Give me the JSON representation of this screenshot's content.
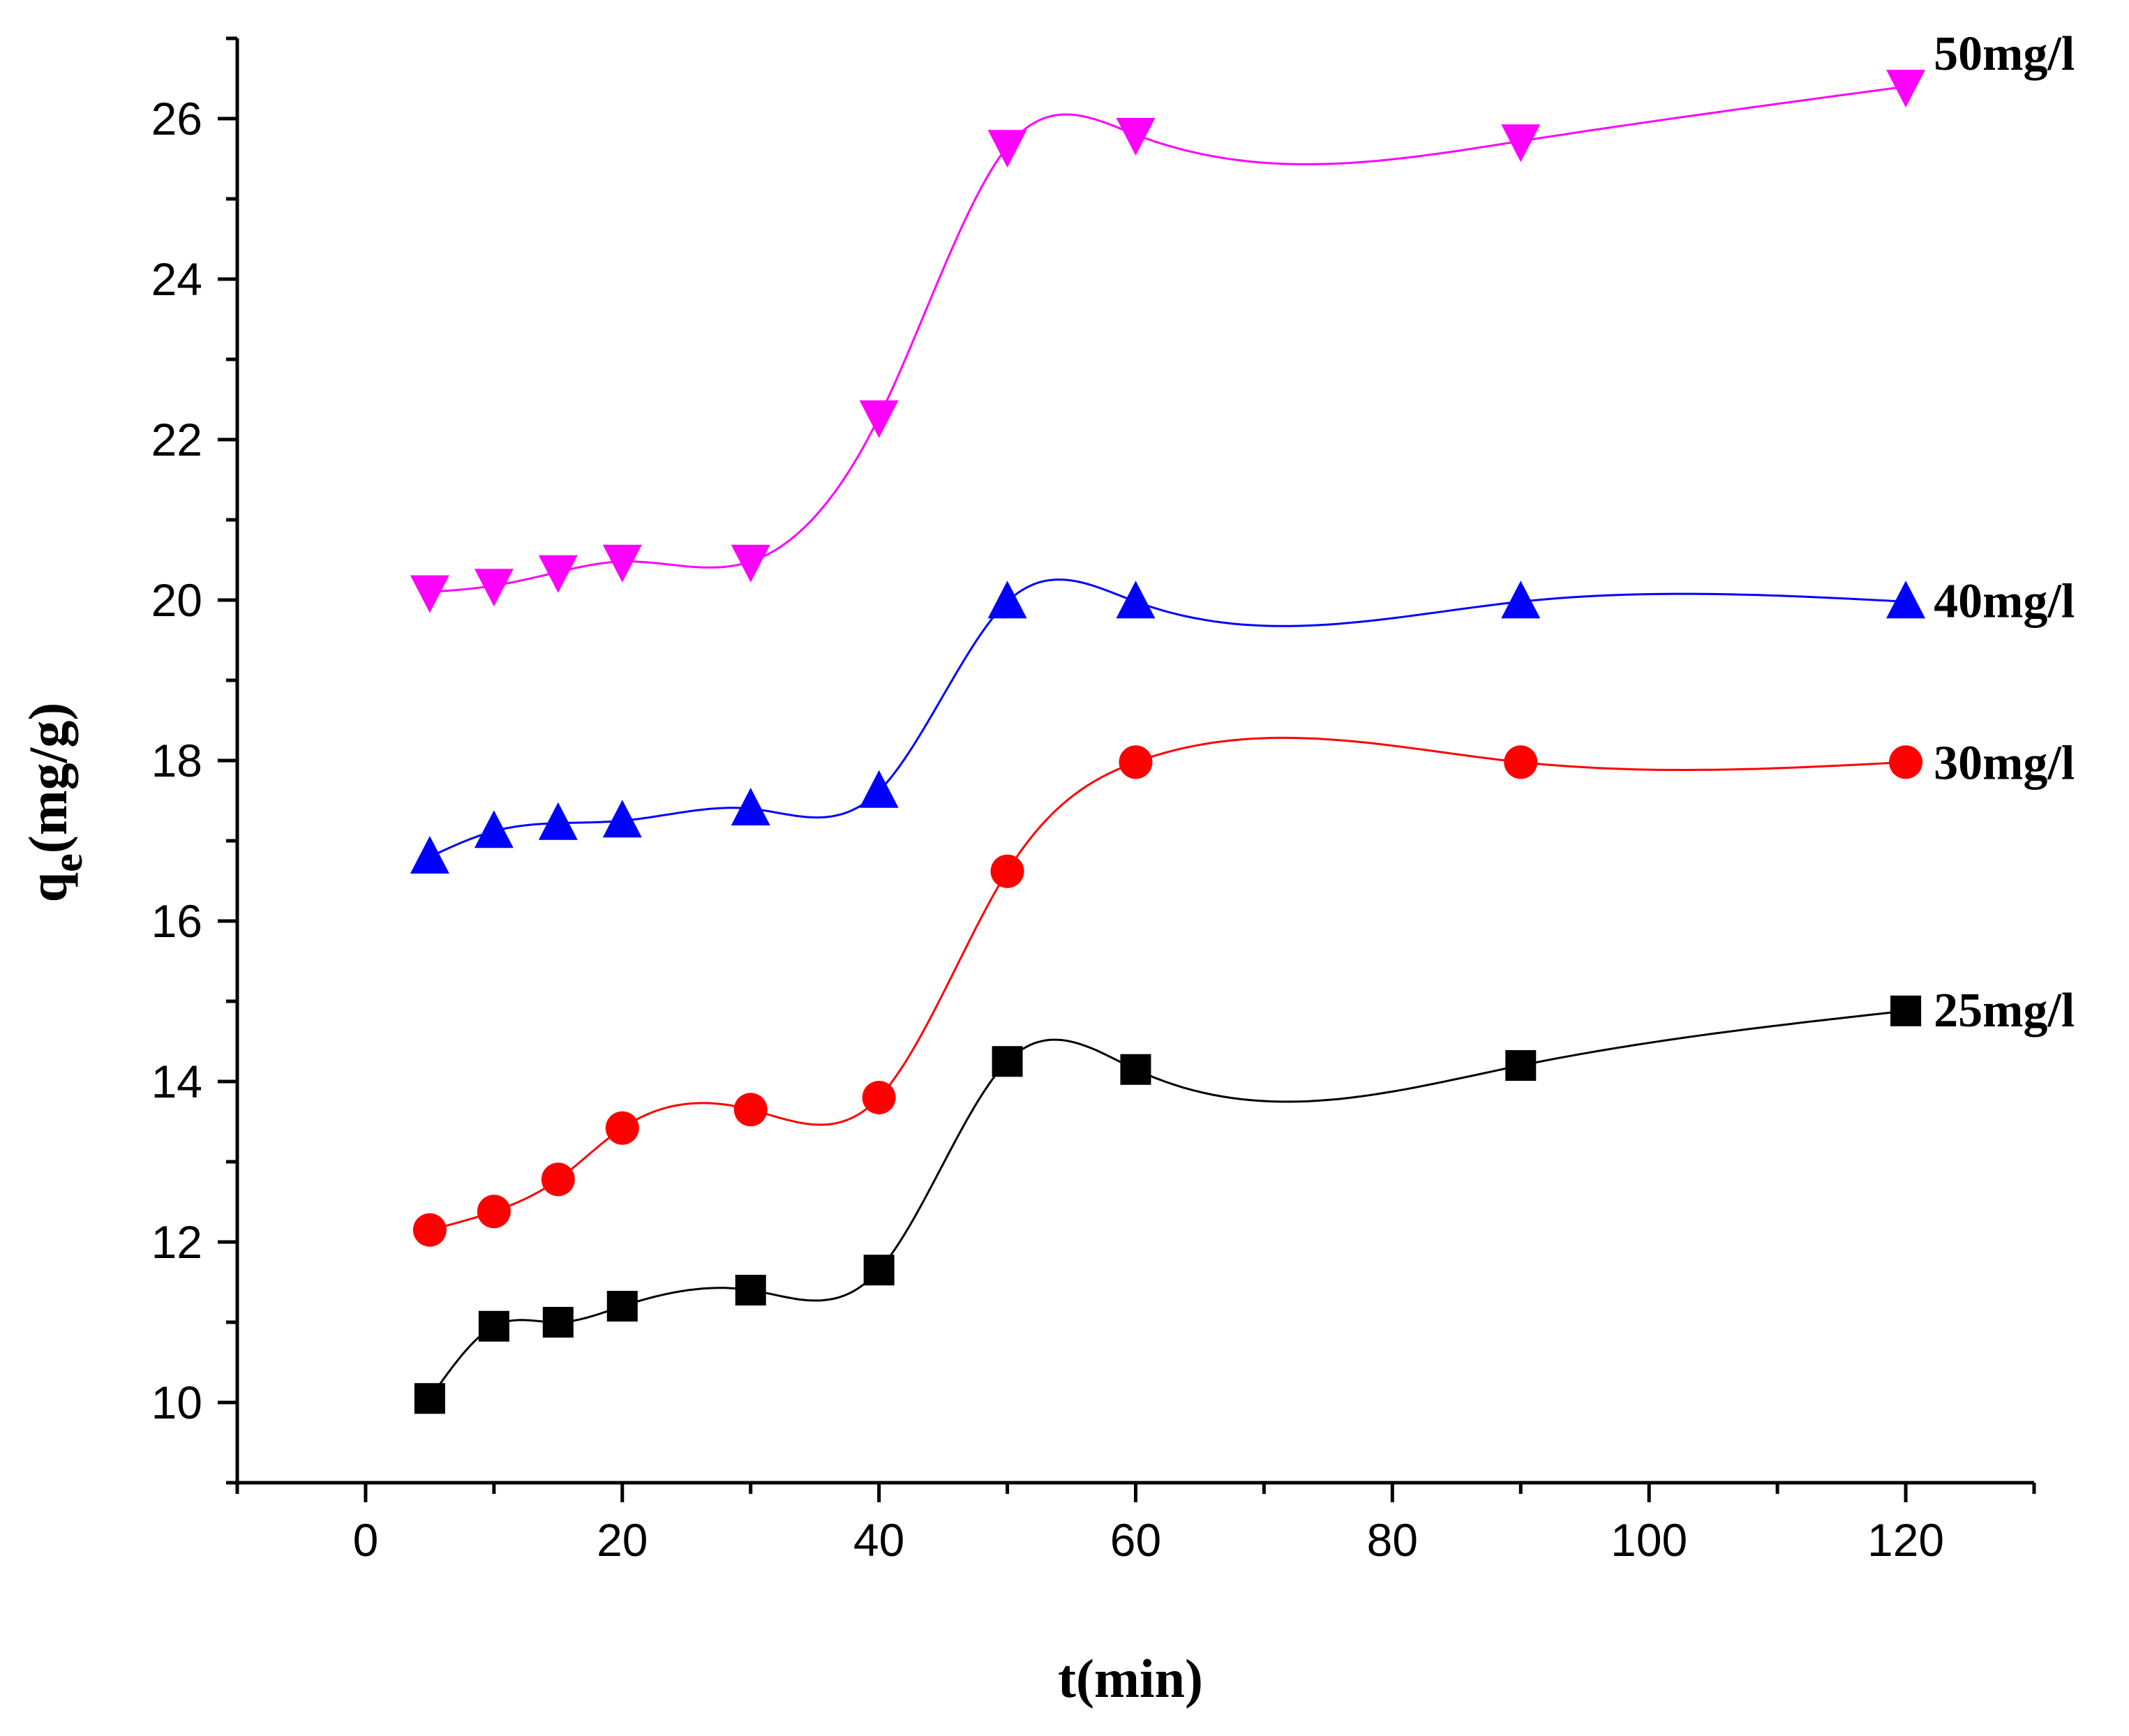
{
  "chart_data": {
    "type": "line",
    "title": "",
    "xlabel": "t(min)",
    "ylabel": {
      "main": "q",
      "sub": "e",
      "unit": "(mg/g)"
    },
    "xlim": [
      -10,
      130
    ],
    "ylim": [
      9.0,
      27.0
    ],
    "xticks": [
      0,
      20,
      40,
      60,
      80,
      100,
      120
    ],
    "yticks": [
      10,
      12,
      14,
      16,
      18,
      20,
      22,
      24,
      26
    ],
    "grid": false,
    "series": [
      {
        "name": "25mg/l",
        "label": "25mg/l",
        "color": "#000000",
        "marker": "square",
        "x": [
          5,
          10,
          15,
          20,
          30,
          40,
          50,
          60,
          90,
          120
        ],
        "y": [
          10.05,
          10.95,
          11.0,
          11.2,
          11.4,
          11.65,
          14.25,
          14.15,
          14.2,
          14.88
        ]
      },
      {
        "name": "30mg/l",
        "label": "30mg/l",
        "color": "#ff0000",
        "marker": "circle",
        "x": [
          5,
          10,
          15,
          20,
          30,
          40,
          50,
          60,
          90,
          120
        ],
        "y": [
          12.15,
          12.38,
          12.78,
          13.42,
          13.65,
          13.8,
          16.62,
          17.98,
          17.98,
          17.98
        ]
      },
      {
        "name": "40mg/l",
        "label": "40mg/l",
        "color": "#0000ff",
        "marker": "triangle-up",
        "x": [
          5,
          10,
          15,
          20,
          30,
          40,
          50,
          60,
          90,
          120
        ],
        "y": [
          16.8,
          17.12,
          17.22,
          17.25,
          17.4,
          17.62,
          19.98,
          19.98,
          19.98,
          19.98
        ]
      },
      {
        "name": "50mg/l",
        "label": "50mg/l",
        "color": "#ff00ff",
        "marker": "triangle-down",
        "x": [
          5,
          10,
          15,
          20,
          30,
          40,
          50,
          60,
          90,
          120
        ],
        "y": [
          20.1,
          20.18,
          20.35,
          20.48,
          20.48,
          22.28,
          25.65,
          25.8,
          25.72,
          26.4
        ]
      }
    ]
  }
}
